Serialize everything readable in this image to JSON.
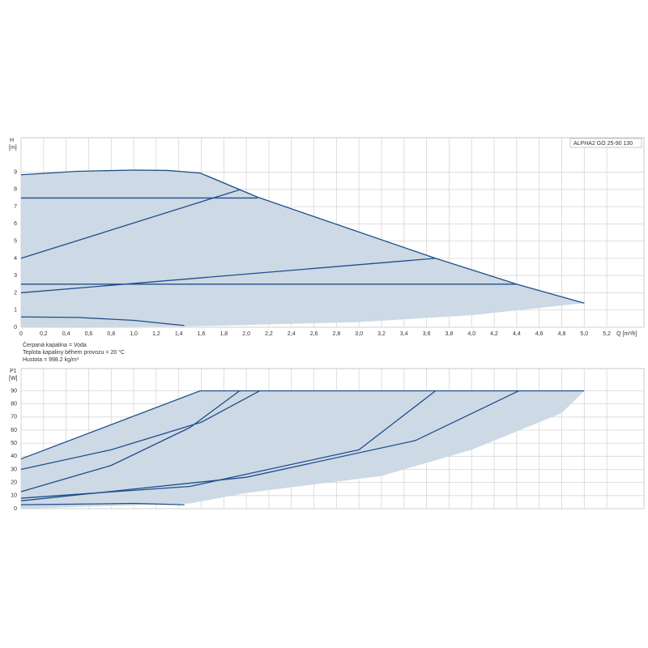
{
  "chart_data": [
    {
      "type": "line",
      "title": "ALPHA2 GO 25-90 130",
      "y_label": "H",
      "y_unit": "[m]",
      "x_label": "Q [m³/h]",
      "annotations": [
        "Čerpaná kapalina = Voda",
        "Teplota kapaliny během provozu = 20 °C",
        "Hustota = 998.2 kg/m³"
      ],
      "xlim": [
        0,
        5.53
      ],
      "ylim": [
        0,
        11
      ],
      "grid": true,
      "xticks": [
        0,
        {
          "value": 0.2,
          "label": "0,2"
        },
        {
          "value": 0.4,
          "label": "0,4"
        },
        {
          "value": 0.6,
          "label": "0,6"
        },
        {
          "value": 0.8,
          "label": "0,8"
        },
        {
          "value": 1,
          "label": "1,0"
        },
        {
          "value": 1.2,
          "label": "1,2"
        },
        {
          "value": 1.4,
          "label": "1,4"
        },
        {
          "value": 1.6,
          "label": "1,6"
        },
        {
          "value": 1.8,
          "label": "1,8"
        },
        {
          "value": 2,
          "label": "2,0"
        },
        {
          "value": 2.2,
          "label": "2,2"
        },
        {
          "value": 2.4,
          "label": "2,4"
        },
        {
          "value": 2.6,
          "label": "2,6"
        },
        {
          "value": 2.8,
          "label": "2,8"
        },
        {
          "value": 3,
          "label": "3,0"
        },
        {
          "value": 3.2,
          "label": "3,2"
        },
        {
          "value": 3.4,
          "label": "3,4"
        },
        {
          "value": 3.6,
          "label": "3,6"
        },
        {
          "value": 3.8,
          "label": "3,8"
        },
        {
          "value": 4,
          "label": "4,0"
        },
        {
          "value": 4.2,
          "label": "4,2"
        },
        {
          "value": 4.4,
          "label": "4,4"
        },
        {
          "value": 4.6,
          "label": "4,6"
        },
        {
          "value": 4.8,
          "label": "4,8"
        },
        {
          "value": 5,
          "label": "5,0"
        },
        {
          "value": 5.2,
          "label": "5,2"
        }
      ],
      "yticks": [
        0,
        1,
        2,
        3,
        4,
        5,
        6,
        7,
        8,
        9
      ],
      "series": [
        {
          "fill": true,
          "color": "#cdd9e5",
          "x": [
            0,
            0.5,
            1,
            1.3,
            1.59,
            2.1,
            3.68,
            4.4,
            5,
            4,
            3,
            1.5,
            0
          ],
          "values": [
            8.85,
            9.05,
            9.12,
            9.1,
            8.95,
            7.55,
            4,
            2.5,
            1.4,
            0.7,
            0.3,
            0.05,
            0
          ]
        },
        {
          "fill": false,
          "color": "#1f4e8c",
          "x": [
            0,
            0.5,
            1,
            1.3,
            1.59,
            2.1,
            3.68,
            4.4,
            5
          ],
          "values": [
            8.85,
            9.05,
            9.12,
            9.1,
            8.95,
            7.55,
            4,
            2.5,
            1.4
          ]
        },
        {
          "fill": false,
          "color": "#1f4e8c",
          "x": [
            0,
            0.5,
            1,
            1.45
          ],
          "values": [
            0.6,
            0.57,
            0.4,
            0.1
          ]
        },
        {
          "fill": false,
          "color": "#1f4e8c",
          "x": [
            0,
            2.1
          ],
          "values": [
            7.5,
            7.5
          ]
        },
        {
          "fill": false,
          "color": "#1f4e8c",
          "x": [
            0,
            1.95
          ],
          "values": [
            4,
            8
          ]
        },
        {
          "fill": false,
          "color": "#1f4e8c",
          "x": [
            0,
            3.68
          ],
          "values": [
            2,
            4
          ]
        },
        {
          "fill": false,
          "color": "#1f4e8c",
          "x": [
            0,
            4.4
          ],
          "values": [
            2.5,
            2.5
          ]
        }
      ]
    },
    {
      "type": "line",
      "y_label": "P1",
      "y_unit": "[W]",
      "xlim": [
        0,
        5.53
      ],
      "ylim": [
        0,
        107
      ],
      "grid": true,
      "xticks": [
        0,
        0.2,
        0.4,
        0.6,
        0.8,
        1,
        1.2,
        1.4,
        1.6,
        1.8,
        2,
        2.2,
        2.4,
        2.6,
        2.8,
        3,
        3.2,
        3.4,
        3.6,
        3.8,
        4,
        4.2,
        4.4,
        4.6,
        4.8,
        5,
        5.2
      ],
      "yticks": [
        0,
        10,
        20,
        30,
        40,
        50,
        60,
        70,
        80,
        90
      ],
      "series": [
        {
          "fill": true,
          "color": "#cdd9e5",
          "x": [
            0,
            1.59,
            5,
            4.8,
            4,
            3.2,
            2,
            1.5,
            0
          ],
          "values": [
            38,
            90,
            90,
            73,
            45,
            25,
            12,
            4,
            0
          ]
        },
        {
          "fill": false,
          "color": "#1f4e8c",
          "x": [
            0,
            1.59,
            5
          ],
          "values": [
            38,
            90,
            90
          ]
        },
        {
          "fill": false,
          "color": "#1f4e8c",
          "x": [
            0,
            0.8,
            1.6,
            2.12
          ],
          "values": [
            30,
            45,
            66,
            90
          ]
        },
        {
          "fill": false,
          "color": "#1f4e8c",
          "x": [
            0,
            0.8,
            1.5,
            1.94
          ],
          "values": [
            13,
            33,
            62,
            90
          ]
        },
        {
          "fill": false,
          "color": "#1f4e8c",
          "x": [
            0,
            1.5,
            3,
            3.68
          ],
          "values": [
            8,
            17,
            45,
            90
          ]
        },
        {
          "fill": false,
          "color": "#1f4e8c",
          "x": [
            0,
            2,
            3.5,
            4.42
          ],
          "values": [
            6,
            24,
            52,
            90
          ]
        },
        {
          "fill": false,
          "color": "#1f4e8c",
          "x": [
            0,
            1,
            1.45
          ],
          "values": [
            3,
            4,
            3
          ]
        }
      ]
    }
  ]
}
